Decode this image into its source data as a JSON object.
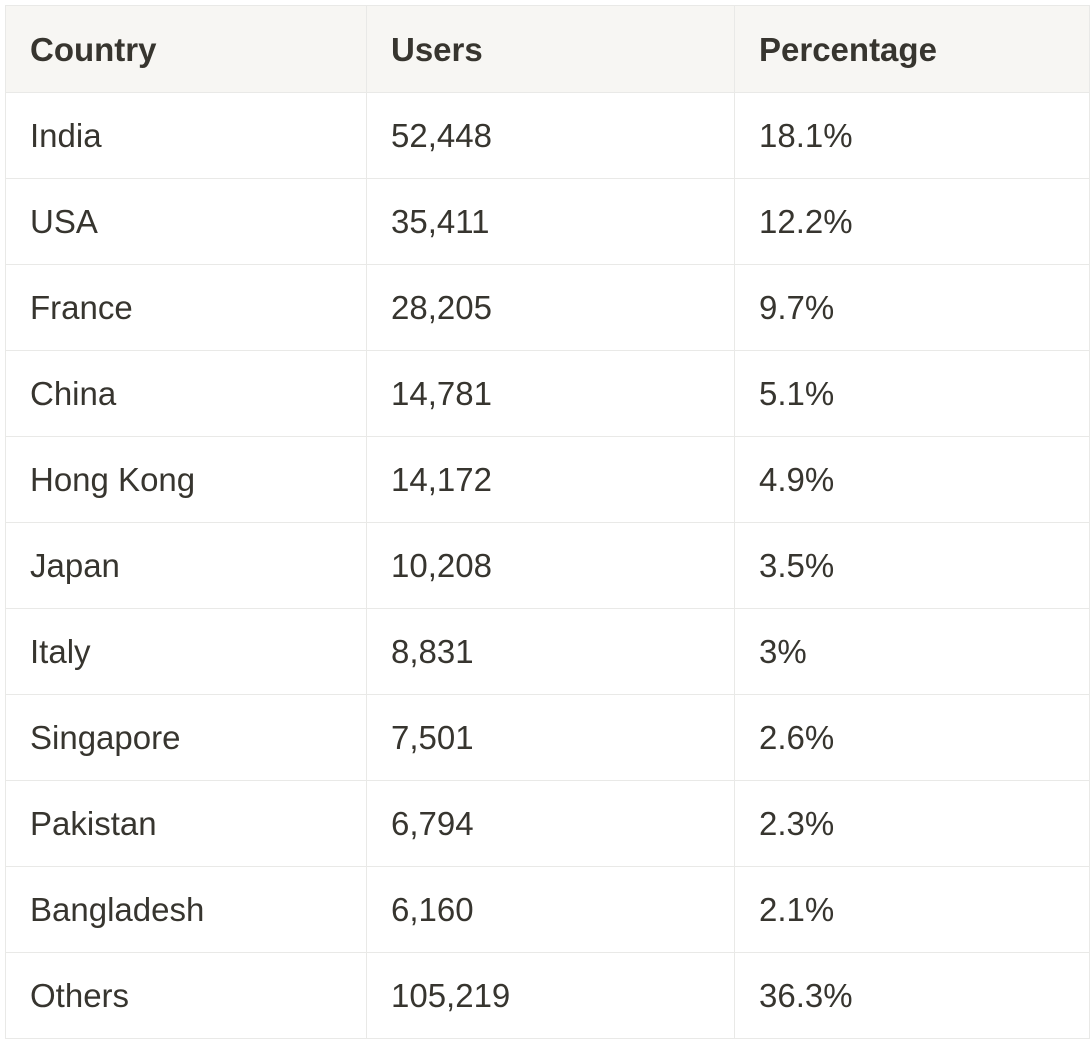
{
  "table": {
    "headers": [
      "Country",
      "Users",
      "Percentage"
    ],
    "rows": [
      [
        "India",
        "52,448",
        "18.1%"
      ],
      [
        "USA",
        "35,411",
        "12.2%"
      ],
      [
        "France",
        "28,205",
        "9.7%"
      ],
      [
        "China",
        "14,781",
        "5.1%"
      ],
      [
        "Hong Kong",
        "14,172",
        "4.9%"
      ],
      [
        "Japan",
        "10,208",
        "3.5%"
      ],
      [
        "Italy",
        "8,831",
        "3%"
      ],
      [
        "Singapore",
        "7,501",
        "2.6%"
      ],
      [
        "Pakistan",
        "6,794",
        "2.3%"
      ],
      [
        "Bangladesh",
        "6,160",
        "2.1%"
      ],
      [
        "Others",
        "105,219",
        "36.3%"
      ]
    ]
  },
  "colors": {
    "header_bg": "#f7f6f3",
    "border": "#e9e9e7",
    "text": "#37352f"
  }
}
